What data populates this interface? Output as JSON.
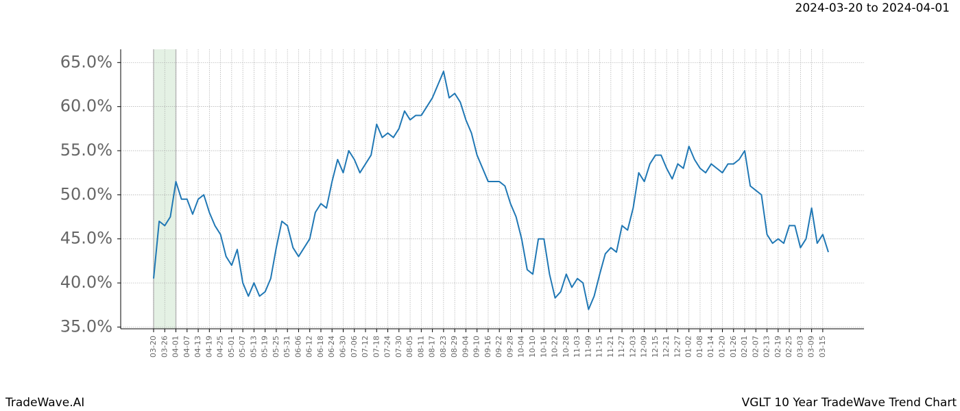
{
  "chart_data": {
    "type": "line",
    "title": "2024-03-20 to 2024-04-01",
    "footer_left": "TradeWave.AI",
    "footer_right": "VGLT 10 Year TradeWave Trend Chart",
    "color": "#1f77b4",
    "highlight": [
      "03-20",
      "04-01"
    ],
    "highlight_color": "#e4f1e4",
    "grid": true,
    "categories": [
      "03-20",
      null,
      "03-26",
      null,
      "04-01",
      null,
      "04-07",
      null,
      "04-13",
      null,
      "04-19",
      null,
      "04-25",
      null,
      "05-01",
      null,
      "05-07",
      null,
      "05-13",
      null,
      "05-19",
      null,
      "05-25",
      null,
      "05-31",
      null,
      "06-06",
      null,
      "06-12",
      null,
      "06-18",
      null,
      "06-24",
      null,
      "06-30",
      null,
      "07-06",
      null,
      "07-12",
      null,
      "07-18",
      null,
      "07-24",
      null,
      "07-30",
      null,
      "08-05",
      null,
      "08-11",
      null,
      "08-17",
      null,
      "08-23",
      null,
      "08-29",
      null,
      "09-04",
      null,
      "09-10",
      null,
      "09-16",
      null,
      "09-22",
      null,
      "09-28",
      null,
      "10-04",
      null,
      "10-10",
      null,
      "10-16",
      null,
      "10-22",
      null,
      "10-28",
      null,
      "11-03",
      null,
      "11-09",
      null,
      "11-15",
      null,
      "11-21",
      null,
      "11-27",
      null,
      "12-03",
      null,
      "12-09",
      null,
      "12-15",
      null,
      "12-21",
      null,
      "12-27",
      null,
      "01-02",
      null,
      "01-08",
      null,
      "01-14",
      null,
      "01-20",
      null,
      "01-26",
      null,
      "02-01",
      null,
      "02-07",
      null,
      "02-13",
      null,
      "02-19",
      null,
      "02-25",
      null,
      "03-03",
      null,
      "03-09",
      null,
      "03-15",
      null
    ],
    "values": [
      40.5,
      47.0,
      46.5,
      47.5,
      51.5,
      49.5,
      49.5,
      47.8,
      49.5,
      50.0,
      48.0,
      46.5,
      45.5,
      43.0,
      42.0,
      43.8,
      40.0,
      38.5,
      40.0,
      38.5,
      39.0,
      40.5,
      44.0,
      47.0,
      46.5,
      44.0,
      43.0,
      44.0,
      45.0,
      48.0,
      49.0,
      48.5,
      51.5,
      54.0,
      52.5,
      55.0,
      54.0,
      52.5,
      53.5,
      54.5,
      58.0,
      56.5,
      57.0,
      56.5,
      57.5,
      59.5,
      58.5,
      59.0,
      59.0,
      60.0,
      61.0,
      62.5,
      64.0,
      61.0,
      61.5,
      60.5,
      58.5,
      57.0,
      54.5,
      53.0,
      51.5,
      51.5,
      51.5,
      51.0,
      49.0,
      47.5,
      45.0,
      41.5,
      41.0,
      45.0,
      45.0,
      41.0,
      38.3,
      39.0,
      41.0,
      39.5,
      40.5,
      40.0,
      37.0,
      38.5,
      41.0,
      43.3,
      44.0,
      43.5,
      46.5,
      46.0,
      48.5,
      52.5,
      51.5,
      53.5,
      54.5,
      54.5,
      53.0,
      51.8,
      53.5,
      53.0,
      55.5,
      54.0,
      53.0,
      52.5,
      53.5,
      53.0,
      52.5,
      53.5,
      53.5,
      54.0,
      55.0,
      51.0,
      50.5,
      50.0,
      45.5,
      44.5,
      45.0,
      44.5,
      46.5,
      46.5,
      44.0,
      45.0,
      48.5,
      44.5,
      45.5,
      43.5
    ],
    "ylim": [
      34.8,
      66.5
    ],
    "yticks": [
      {
        "value": 35,
        "label": "35.0%"
      },
      {
        "value": 40,
        "label": "40.0%"
      },
      {
        "value": 45,
        "label": "45.0%"
      },
      {
        "value": 50,
        "label": "50.0%"
      },
      {
        "value": 55,
        "label": "55.0%"
      },
      {
        "value": 60,
        "label": "60.0%"
      },
      {
        "value": 65,
        "label": "65.0%"
      }
    ]
  }
}
